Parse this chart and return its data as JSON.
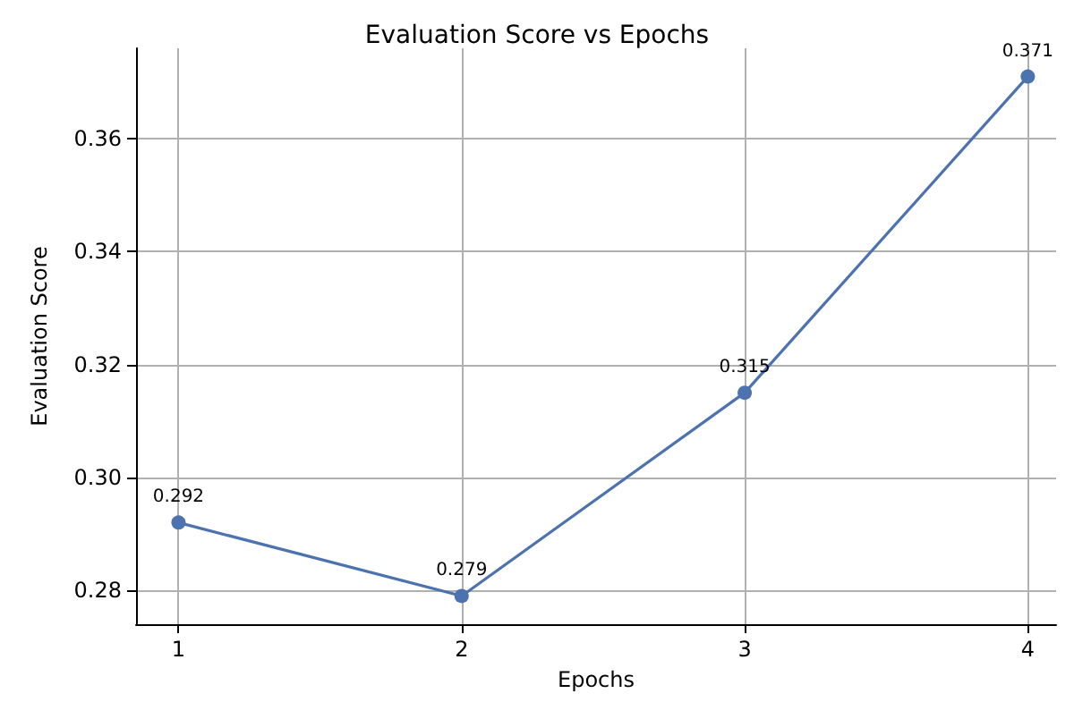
{
  "chart_data": {
    "type": "line",
    "title": "Evaluation Score vs Epochs",
    "xlabel": "Epochs",
    "ylabel": "Evaluation Score",
    "x": [
      1,
      2,
      3,
      4
    ],
    "series": [
      {
        "color": "#4c72b0",
        "values": [
          0.292,
          0.279,
          0.315,
          0.371
        ]
      }
    ],
    "xlim": [
      0.85,
      4.1
    ],
    "xticks": [
      1,
      2,
      3,
      4
    ],
    "ylim": [
      0.274,
      0.376
    ],
    "yticks": [
      {
        "value": 0.28,
        "label": "0.28"
      },
      {
        "value": 0.3,
        "label": "0.30"
      },
      {
        "value": 0.32,
        "label": "0.32"
      },
      {
        "value": 0.34,
        "label": "0.34"
      },
      {
        "value": 0.36,
        "label": "0.36"
      }
    ],
    "grid": true,
    "marker": "circle",
    "line_style": "solid",
    "data_labels": true
  }
}
